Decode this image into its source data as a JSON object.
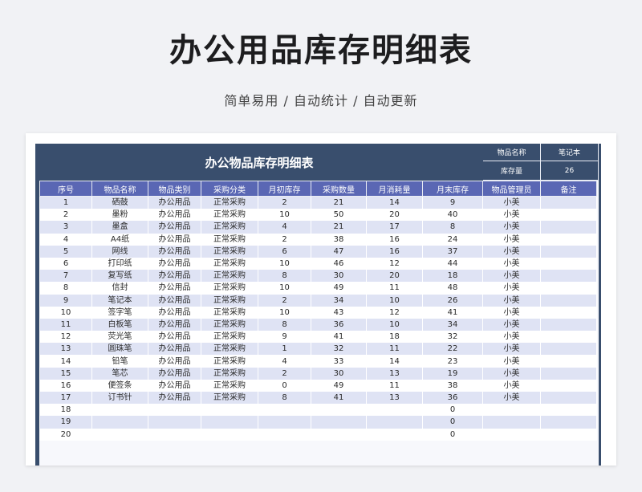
{
  "title": "办公用品库存明细表",
  "subtitle": "简单易用 / 自动统计 / 自动更新",
  "sheet": {
    "banner": "办公物品库存明细表",
    "meta": {
      "name_label": "物品名称",
      "name_value": "笔记本",
      "stock_label": "库存量",
      "stock_value": "26"
    },
    "headers": [
      "序号",
      "物品名称",
      "物品类别",
      "采购分类",
      "月初库存",
      "采购数量",
      "月消耗量",
      "月末库存",
      "物品管理员",
      "备注"
    ],
    "rows": [
      [
        "1",
        "硒鼓",
        "办公用品",
        "正常采购",
        "2",
        "21",
        "14",
        "9",
        "小美",
        ""
      ],
      [
        "2",
        "墨粉",
        "办公用品",
        "正常采购",
        "10",
        "50",
        "20",
        "40",
        "小美",
        ""
      ],
      [
        "3",
        "墨盒",
        "办公用品",
        "正常采购",
        "4",
        "21",
        "17",
        "8",
        "小美",
        ""
      ],
      [
        "4",
        "A4纸",
        "办公用品",
        "正常采购",
        "2",
        "38",
        "16",
        "24",
        "小美",
        ""
      ],
      [
        "5",
        "网线",
        "办公用品",
        "正常采购",
        "6",
        "47",
        "16",
        "37",
        "小美",
        ""
      ],
      [
        "6",
        "打印纸",
        "办公用品",
        "正常采购",
        "10",
        "46",
        "12",
        "44",
        "小美",
        ""
      ],
      [
        "7",
        "复写纸",
        "办公用品",
        "正常采购",
        "8",
        "30",
        "20",
        "18",
        "小美",
        ""
      ],
      [
        "8",
        "信封",
        "办公用品",
        "正常采购",
        "10",
        "49",
        "11",
        "48",
        "小美",
        ""
      ],
      [
        "9",
        "笔记本",
        "办公用品",
        "正常采购",
        "2",
        "34",
        "10",
        "26",
        "小美",
        ""
      ],
      [
        "10",
        "签字笔",
        "办公用品",
        "正常采购",
        "10",
        "43",
        "12",
        "41",
        "小美",
        ""
      ],
      [
        "11",
        "白板笔",
        "办公用品",
        "正常采购",
        "8",
        "36",
        "10",
        "34",
        "小美",
        ""
      ],
      [
        "12",
        "荧光笔",
        "办公用品",
        "正常采购",
        "9",
        "41",
        "18",
        "32",
        "小美",
        ""
      ],
      [
        "13",
        "圆珠笔",
        "办公用品",
        "正常采购",
        "1",
        "32",
        "11",
        "22",
        "小美",
        ""
      ],
      [
        "14",
        "铅笔",
        "办公用品",
        "正常采购",
        "4",
        "33",
        "14",
        "23",
        "小美",
        ""
      ],
      [
        "15",
        "笔芯",
        "办公用品",
        "正常采购",
        "2",
        "30",
        "13",
        "19",
        "小美",
        ""
      ],
      [
        "16",
        "便签条",
        "办公用品",
        "正常采购",
        "0",
        "49",
        "11",
        "38",
        "小美",
        ""
      ],
      [
        "17",
        "订书针",
        "办公用品",
        "正常采购",
        "8",
        "41",
        "13",
        "36",
        "小美",
        ""
      ],
      [
        "18",
        "",
        "",
        "",
        "",
        "",
        "",
        "0",
        "",
        ""
      ],
      [
        "19",
        "",
        "",
        "",
        "",
        "",
        "",
        "0",
        "",
        ""
      ],
      [
        "20",
        "",
        "",
        "",
        "",
        "",
        "",
        "0",
        "",
        ""
      ]
    ]
  }
}
